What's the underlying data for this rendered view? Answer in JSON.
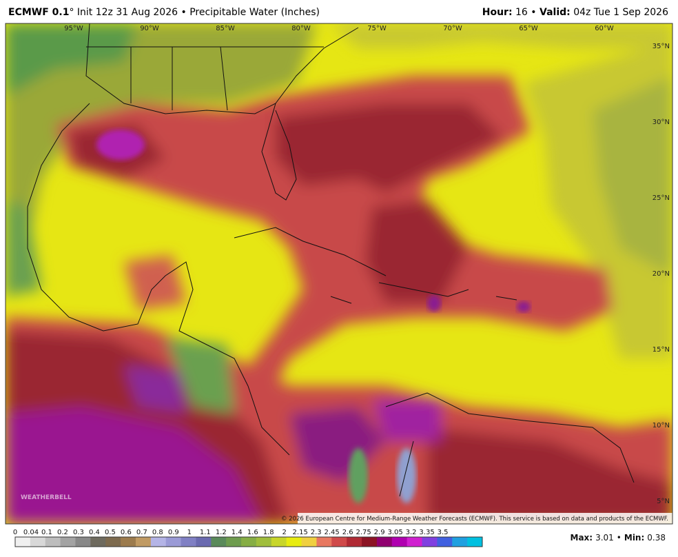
{
  "header": {
    "model": "ECMWF 0.1",
    "init": "° Init 12z 31 Aug 2026",
    "separator": "•",
    "variable": "Precipitable Water (Inches)",
    "hour_label": "Hour:",
    "hour": "16",
    "valid_label": "Valid:",
    "valid": "04z Tue 1 Sep 2026"
  },
  "map": {
    "longitudes": [
      "95°W",
      "90°W",
      "85°W",
      "80°W",
      "75°W",
      "70°W",
      "65°W",
      "60°W"
    ],
    "latitudes": [
      "35°N",
      "30°N",
      "25°N",
      "20°N",
      "15°N",
      "10°N",
      "5°N"
    ],
    "logo": "WEATHERBELL",
    "credit": "© 2026 European Centre for Medium-Range Weather Forecasts (ECMWF). This service is based on data and products of the ECMWF."
  },
  "colorbar": {
    "labels": [
      0,
      0.04,
      0.1,
      0.2,
      0.3,
      0.4,
      0.5,
      0.6,
      0.7,
      0.8,
      0.9,
      1,
      1.1,
      1.2,
      1.4,
      1.6,
      1.8,
      2,
      2.15,
      2.3,
      2.45,
      2.6,
      2.75,
      2.9,
      3.05,
      3.2,
      3.35,
      3.5
    ],
    "colors": [
      "#f0f0f0",
      "#d8d8d8",
      "#bdbdbd",
      "#a3a3a3",
      "#888888",
      "#6e6a5e",
      "#7d6a4e",
      "#9c7b4d",
      "#c09a63",
      "#b4b4e6",
      "#9a9ad6",
      "#8080c4",
      "#6a6ab0",
      "#5a8a5a",
      "#6e9c4e",
      "#86ae44",
      "#a0be3c",
      "#c8d62a",
      "#e8ec10",
      "#f0d040",
      "#e87860",
      "#d04a4a",
      "#b02a34",
      "#8c1424",
      "#900070",
      "#b000b0",
      "#d020d0",
      "#8040e0",
      "#4060e0",
      "#20a0e0",
      "#00c0e0"
    ]
  },
  "stats": {
    "max_label": "Max:",
    "max": "3.01",
    "separator": "•",
    "min_label": "Min:",
    "min": "0.38"
  }
}
